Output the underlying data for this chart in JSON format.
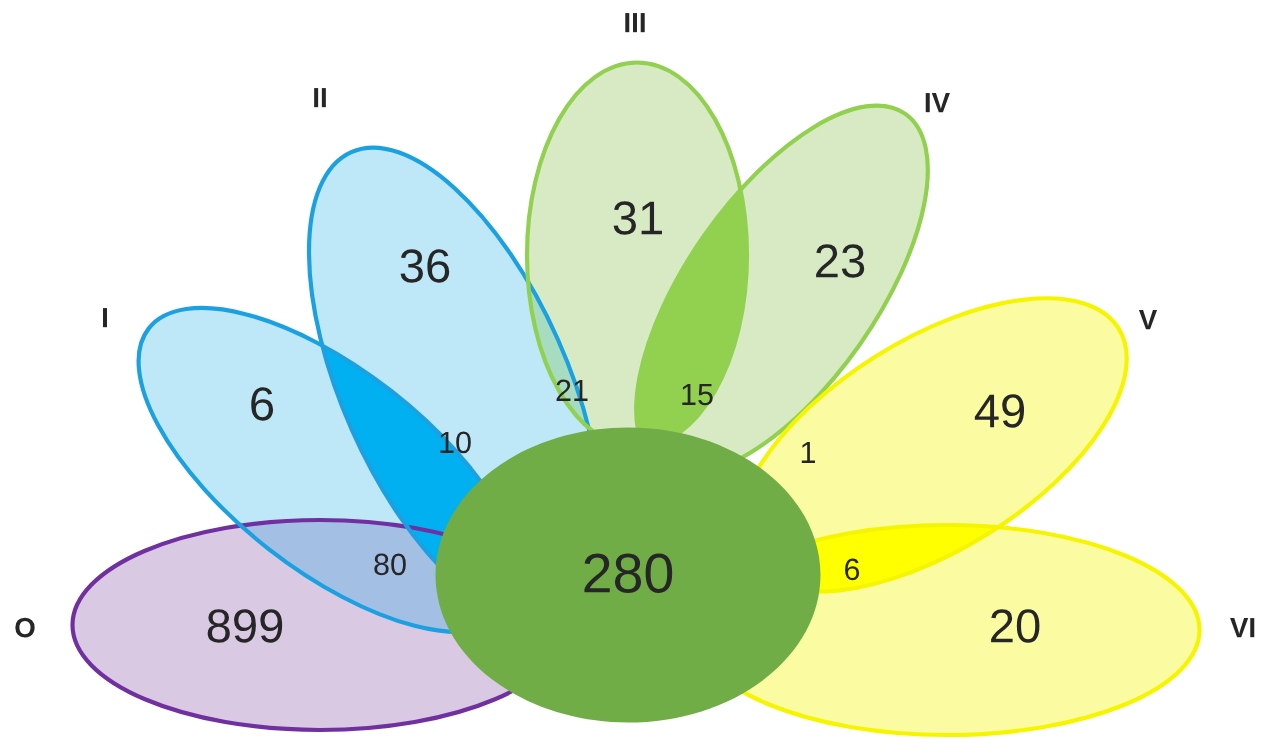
{
  "chart_data": {
    "type": "other",
    "data_labels": true,
    "categories": [
      "O",
      "I",
      "II",
      "III",
      "IV",
      "V",
      "VI"
    ],
    "colors": [
      "#7030a0",
      "#1ba1e2",
      "#1ba1e2",
      "#92d050",
      "#92d050",
      "#f5f500",
      "#f5f500",
      "#70ad47"
    ],
    "annotations": [
      "280"
    ],
    "series": [
      {
        "values": [
          899,
          6,
          36,
          31,
          23,
          49,
          20
        ],
        "colors": [
          "#d9c9e3",
          "#bee7f7",
          "#bee7f7",
          "#d7eac4",
          "#d7eac4",
          "#fbfba2",
          "#fbfba2"
        ]
      },
      {
        "values": [
          80,
          10,
          21,
          15,
          1,
          6,
          null
        ],
        "colors": [
          "#a3bfe3",
          "#00b0f0",
          "#a8dcc0",
          "#92d050",
          "#d8ea80",
          "#ffff00",
          null
        ]
      }
    ]
  }
}
